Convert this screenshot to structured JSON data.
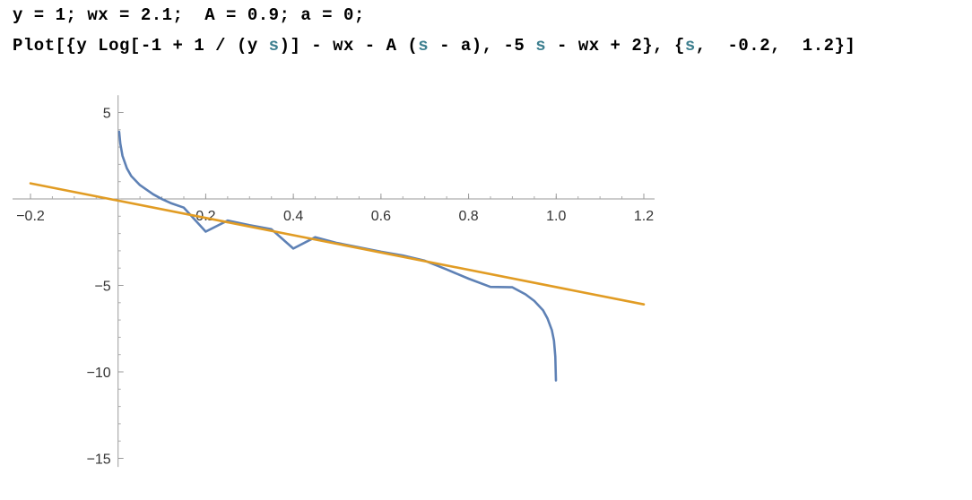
{
  "notebook": {
    "input_line_1": "y = 1; wx = 2.1;  A = 0.9; a = 0;",
    "input_line_2": {
      "p1": "Plot[{y Log[-1 + 1 / (y ",
      "s1": "s",
      "p2": ")] - wx - A (",
      "s2": "s",
      "p3": " - a), -5 ",
      "s3": "s",
      "p4": " - wx + 2}, {",
      "s4": "s",
      "p5": ",  -0.2,  1.2}]"
    }
  },
  "chart_data": {
    "type": "line",
    "title": "",
    "xlabel": "",
    "ylabel": "",
    "xlim": [
      -0.2,
      1.2
    ],
    "ylim": [
      -15.5,
      6
    ],
    "x_ticks": [
      -0.2,
      0.2,
      0.4,
      0.6,
      0.8,
      1.0,
      1.2
    ],
    "x_tick_labels": [
      "-0.2",
      "0.2",
      "0.4",
      "0.6",
      "0.8",
      "1.0",
      "1.2"
    ],
    "y_ticks": [
      5,
      -5,
      -10,
      -15
    ],
    "y_tick_labels": [
      "5",
      "-5",
      "-10",
      "-15"
    ],
    "params": {
      "y": 1,
      "wx": 2.1,
      "A": 0.9,
      "a": 0
    },
    "series": [
      {
        "name": "y Log[-1 + 1/(y s)] - wx - A (s - a)",
        "color": "#5e81b5",
        "x": [
          0.0025,
          0.005,
          0.01,
          0.02,
          0.03,
          0.05,
          0.08,
          0.1,
          0.12,
          0.15,
          0.2,
          0.25,
          0.3,
          0.35,
          0.4,
          0.45,
          0.5,
          0.55,
          0.6,
          0.65,
          0.7,
          0.75,
          0.8,
          0.85,
          0.9,
          0.93,
          0.95,
          0.97,
          0.98,
          0.99,
          0.995,
          0.998,
          0.9995
        ],
        "y": [
          3.88,
          3.19,
          2.49,
          1.77,
          1.32,
          0.8,
          0.27,
          -0.01,
          -0.24,
          -0.5,
          -1.89,
          -1.25,
          -1.52,
          -1.75,
          -2.87,
          -2.21,
          -2.55,
          -2.8,
          -3.05,
          -3.27,
          -3.57,
          -4.08,
          -4.61,
          -5.09,
          -5.11,
          -5.52,
          -5.9,
          -6.44,
          -6.9,
          -7.58,
          -8.19,
          -9.12,
          -10.5
        ]
      },
      {
        "name": "-5 s - wx + 2",
        "color": "#e19c24",
        "x": [
          -0.2,
          1.2
        ],
        "y": [
          0.9,
          -6.1
        ]
      }
    ]
  }
}
